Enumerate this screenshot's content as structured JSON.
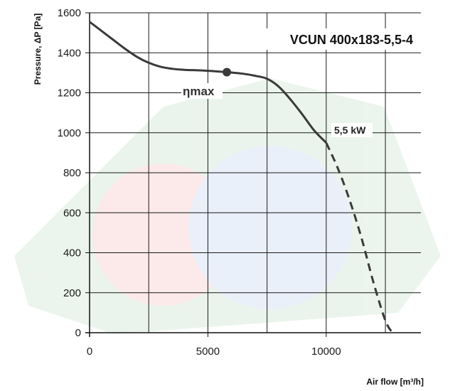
{
  "chart_data": {
    "type": "line",
    "title": "VCUN 400x183-5,5-4",
    "xlabel": "Air flow [m³/h]",
    "ylabel": "Pressure, ΔP [Pa]",
    "xlim": [
      0,
      14000
    ],
    "ylim": [
      0,
      1600
    ],
    "x_ticks": [
      "0",
      "5000",
      "10000"
    ],
    "y_ticks": [
      "0",
      "200",
      "400",
      "600",
      "800",
      "1000",
      "1200",
      "1400",
      "1600"
    ],
    "grid": true,
    "colors": {
      "curve": "#3a3a3a",
      "grid": "#1a1a1a",
      "text": "#111111"
    },
    "series": [
      {
        "style": "solid",
        "x": [
          0,
          500,
          1000,
          1500,
          2000,
          2500,
          3000,
          3500,
          4000,
          5000,
          5800,
          6500,
          7000,
          7500,
          8000,
          8500,
          9000,
          9500,
          10000
        ],
        "y": [
          1555,
          1510,
          1465,
          1420,
          1380,
          1350,
          1330,
          1320,
          1315,
          1310,
          1303,
          1295,
          1285,
          1270,
          1230,
          1165,
          1090,
          1010,
          950
        ]
      },
      {
        "style": "dashed",
        "x": [
          10000,
          10500,
          11000,
          11500,
          12000,
          12500,
          12800
        ],
        "y": [
          950,
          820,
          660,
          470,
          250,
          60,
          0
        ]
      }
    ],
    "annotations": {
      "operating_point": {
        "label": "ηmax",
        "x": 5800,
        "y": 1303
      },
      "power_label": "5,5 kW"
    }
  }
}
